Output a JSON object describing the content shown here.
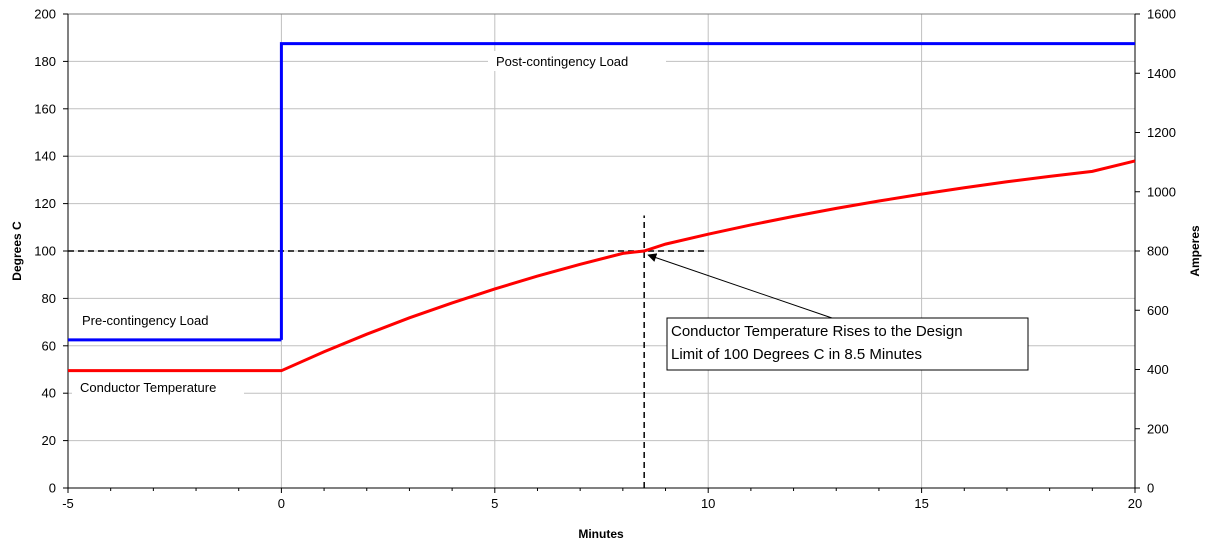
{
  "chart_data": {
    "type": "line",
    "xlabel": "Minutes",
    "ylabel": "Degrees C",
    "y2label": "Amperes",
    "xlim": [
      -5,
      20
    ],
    "ylim": [
      0,
      200
    ],
    "y2lim": [
      0,
      1600
    ],
    "xticks": [
      "-5",
      "0",
      "5",
      "10",
      "15",
      "20"
    ],
    "yticks": [
      "0",
      "20",
      "40",
      "60",
      "80",
      "100",
      "120",
      "140",
      "160",
      "180",
      "200"
    ],
    "y2ticks": [
      "0",
      "200",
      "400",
      "600",
      "800",
      "1000",
      "1200",
      "1400",
      "1600"
    ],
    "grid": true,
    "series": [
      {
        "name": "Pre-contingency Load",
        "axis": "right",
        "color": "#0000ff",
        "x": [
          -5,
          0
        ],
        "y": [
          500,
          500
        ]
      },
      {
        "name": "Post-contingency Load",
        "axis": "right",
        "color": "#0000ff",
        "x": [
          0,
          0,
          20
        ],
        "y": [
          500,
          1500,
          1500
        ]
      },
      {
        "name": "Conductor Temperature",
        "axis": "left",
        "color": "#ff0000",
        "x": [
          -5,
          0,
          1,
          2,
          3,
          4,
          5,
          6,
          7,
          8,
          8.5,
          9,
          10,
          11,
          12,
          13,
          14,
          15,
          16,
          17,
          18,
          19,
          20
        ],
        "y": [
          49.5,
          49.5,
          57.5,
          64.9,
          71.8,
          78.1,
          84.0,
          89.4,
          94.4,
          99.0,
          100,
          102.9,
          107.1,
          111.0,
          114.6,
          118.0,
          121.1,
          124.0,
          126.7,
          129.2,
          131.5,
          133.6,
          138
        ]
      }
    ],
    "reference_lines": [
      {
        "orientation": "horizontal",
        "y": 100,
        "x_range": [
          -5,
          10
        ],
        "style": "dashed"
      },
      {
        "orientation": "vertical",
        "x": 8.5,
        "y_range": [
          0,
          115
        ],
        "style": "dashed"
      }
    ],
    "annotation": {
      "line1": "Conductor Temperature Rises to the Design",
      "line2": "Limit of 100 Degrees C in 8.5 Minutes",
      "point": [
        8.5,
        100
      ]
    }
  }
}
